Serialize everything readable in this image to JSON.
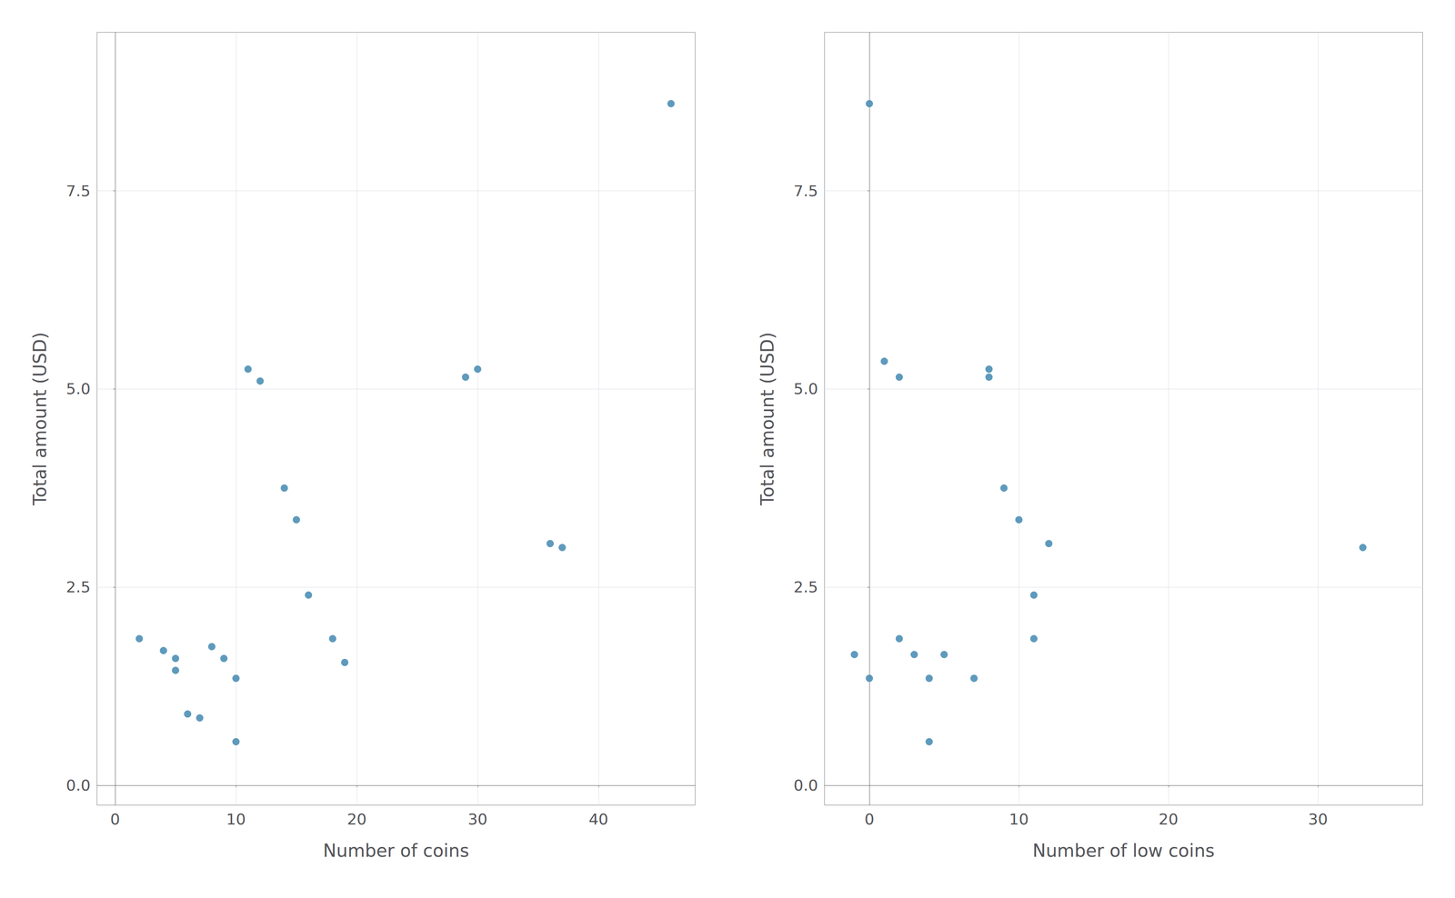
{
  "chart_data": [
    {
      "type": "scatter",
      "x": [
        2,
        4,
        5,
        5,
        6,
        7,
        8,
        9,
        10,
        10,
        11,
        12,
        14,
        15,
        16,
        18,
        19,
        29,
        30,
        36,
        37,
        46
      ],
      "values": [
        1.85,
        1.7,
        1.6,
        1.45,
        0.9,
        0.85,
        1.75,
        1.6,
        1.35,
        0.55,
        5.25,
        5.1,
        3.75,
        3.35,
        2.4,
        1.85,
        1.55,
        5.15,
        5.25,
        3.05,
        3.0,
        8.6
      ],
      "xlabel": "Number of coins",
      "ylabel": "Total amount (USD)",
      "xlim": [
        -1.5,
        48
      ],
      "ylim": [
        -0.25,
        9.5
      ],
      "xticks": [
        0,
        10,
        20,
        30,
        40
      ],
      "yticks": [
        {
          "value": 0,
          "label": "0.0"
        },
        2.5,
        {
          "value": 5,
          "label": "5.0"
        },
        7.5
      ],
      "color": "#4d8fb5",
      "grid": true
    },
    {
      "type": "scatter",
      "x": [
        -1,
        0,
        0,
        1,
        2,
        2,
        3,
        4,
        4,
        5,
        7,
        8,
        8,
        9,
        10,
        11,
        11,
        12,
        33
      ],
      "values": [
        1.65,
        1.35,
        8.6,
        5.35,
        5.15,
        1.85,
        1.65,
        1.35,
        0.55,
        1.65,
        1.35,
        5.25,
        5.15,
        3.75,
        3.35,
        2.4,
        1.85,
        3.05,
        3.0
      ],
      "xlabel": "Number of low coins",
      "ylabel": "Total amount (USD)",
      "xlim": [
        -3,
        37
      ],
      "ylim": [
        -0.25,
        9.5
      ],
      "xticks": [
        0,
        10,
        20,
        30
      ],
      "yticks": [
        {
          "value": 0,
          "label": "0.0"
        },
        2.5,
        {
          "value": 5,
          "label": "5.0"
        },
        7.5
      ],
      "color": "#4d8fb5",
      "grid": true
    }
  ]
}
